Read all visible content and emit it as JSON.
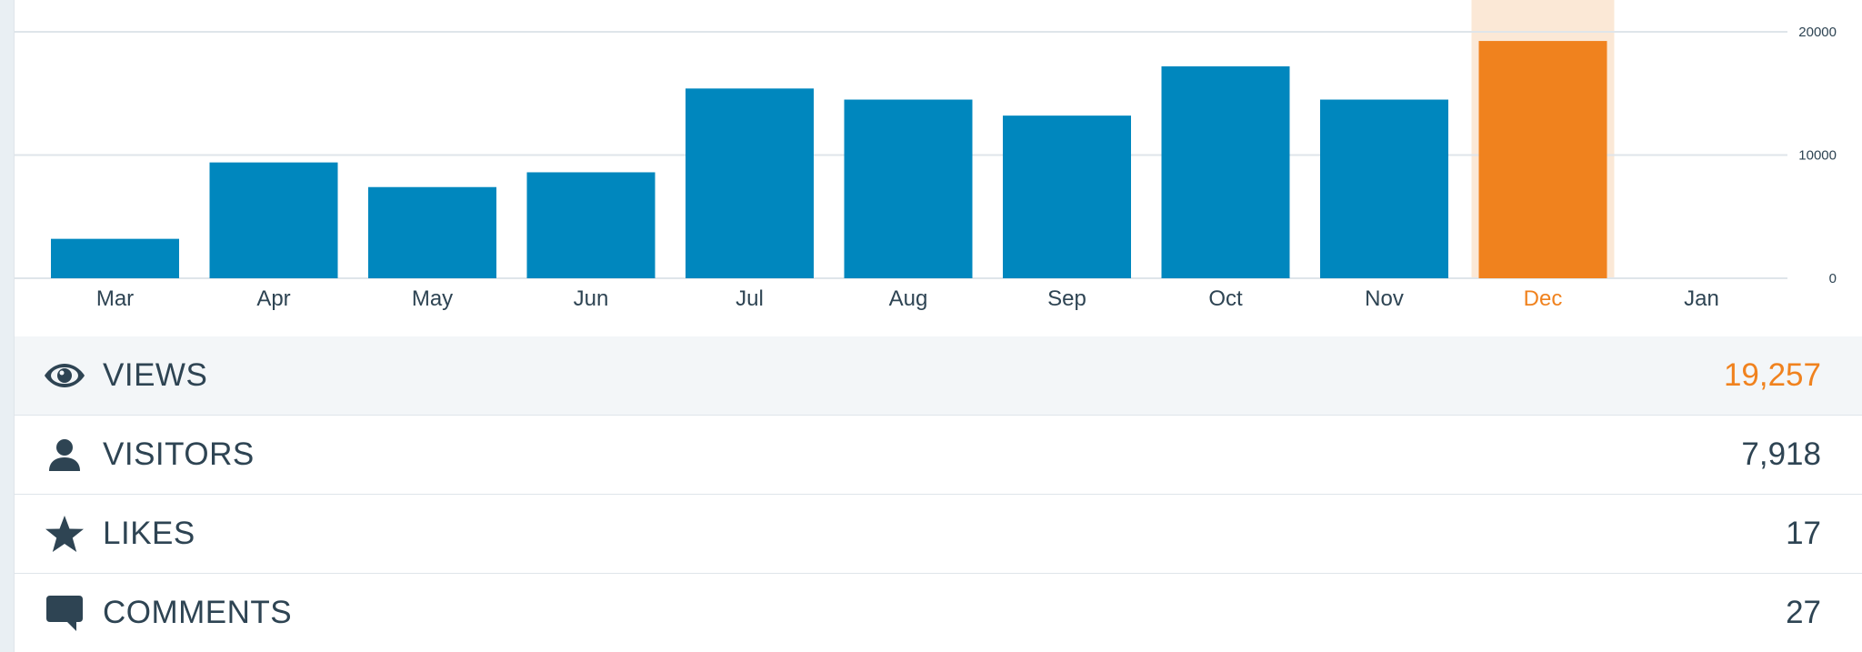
{
  "chart_data": {
    "type": "bar",
    "categories": [
      "Mar",
      "Apr",
      "May",
      "Jun",
      "Jul",
      "Aug",
      "Sep",
      "Oct",
      "Nov",
      "Dec",
      "Jan"
    ],
    "values": [
      3200,
      9400,
      7400,
      8600,
      15400,
      14500,
      13200,
      17200,
      14500,
      19257,
      0
    ],
    "selected_index": 9,
    "ylim": [
      0,
      20000
    ],
    "y_ticks": [
      "0",
      "10000",
      "20000"
    ],
    "grid": true,
    "title": "",
    "xlabel": "",
    "ylabel": ""
  },
  "colors": {
    "bar": "#0087be",
    "bar_selected": "#f0821e",
    "selected_column_highlight": "#fbe8d6",
    "label_selected": "#f0821e",
    "text": "#2e4453"
  },
  "stats": [
    {
      "label": "VIEWS",
      "value": "19,257",
      "icon": "eye-icon",
      "selected": true
    },
    {
      "label": "VISITORS",
      "value": "7,918",
      "icon": "person-icon",
      "selected": false
    },
    {
      "label": "LIKES",
      "value": "17",
      "icon": "star-icon",
      "selected": false
    },
    {
      "label": "COMMENTS",
      "value": "27",
      "icon": "comment-icon",
      "selected": false
    }
  ]
}
